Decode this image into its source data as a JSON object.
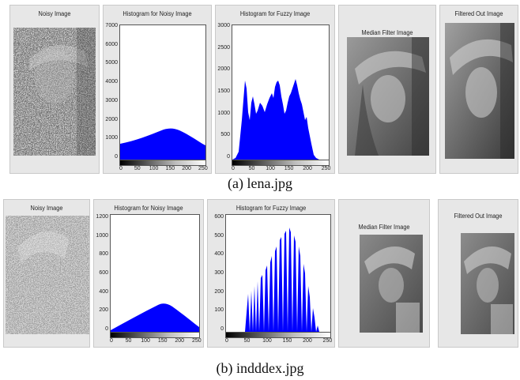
{
  "rows": [
    {
      "caption": "(a)   lena.jpg",
      "noisy_title": "Noisy Image",
      "hist_noisy": {
        "title": "Histogram for Noisy Image",
        "y_ticks": [
          "7000",
          "6000",
          "5000",
          "4000",
          "3000",
          "2000",
          "1000",
          "0"
        ],
        "x_ticks": [
          "0",
          "50",
          "100",
          "150",
          "200",
          "250"
        ]
      },
      "hist_fuzzy": {
        "title": "Histogram for Fuzzy Image",
        "y_ticks": [
          "3000",
          "2500",
          "2000",
          "1500",
          "1000",
          "500",
          "0"
        ],
        "x_ticks": [
          "0",
          "50",
          "100",
          "150",
          "200",
          "250"
        ]
      },
      "median_title": "Median Filter Image",
      "filtered_title": "Filtered Out Image"
    },
    {
      "caption": "(b)   indddex.jpg",
      "noisy_title": "Noisy Image",
      "hist_noisy": {
        "title": "Histogram for Noisy Image",
        "y_ticks": [
          "1200",
          "1000",
          "800",
          "600",
          "400",
          "200",
          "0"
        ],
        "x_ticks": [
          "0",
          "50",
          "100",
          "150",
          "200",
          "250"
        ]
      },
      "hist_fuzzy": {
        "title": "Histogram for Fuzzy Image",
        "y_ticks": [
          "600",
          "500",
          "400",
          "300",
          "200",
          "100",
          "0"
        ],
        "x_ticks": [
          "0",
          "50",
          "100",
          "150",
          "200",
          "250"
        ]
      },
      "median_title": "Median Filter Image",
      "filtered_title": "Filtered Out Image"
    }
  ],
  "colors": {
    "histogram_fill": "#0000ff",
    "panel_bg": "#e7e7e7"
  }
}
